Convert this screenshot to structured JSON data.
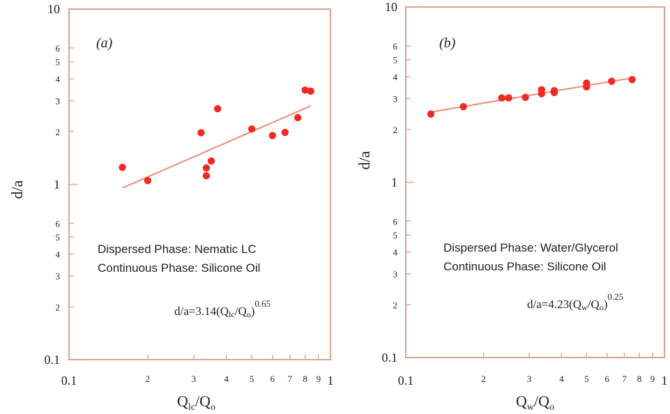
{
  "chart_data": [
    {
      "type": "scatter",
      "panel_label": "(a)",
      "xlabel": {
        "main": "Q",
        "sub1": "lc",
        "slash": "/Q",
        "sub2": "o"
      },
      "ylabel": "d/a",
      "x_scale": "log",
      "y_scale": "log",
      "xlim": [
        0.1,
        1
      ],
      "ylim": [
        0.1,
        10
      ],
      "x_major_ticks": [
        {
          "v": 0.1,
          "t": "0.1"
        },
        {
          "v": 1,
          "t": "1"
        }
      ],
      "x_minor_ticks": [
        {
          "v": 0.2,
          "t": "2"
        },
        {
          "v": 0.3,
          "t": "3"
        },
        {
          "v": 0.4,
          "t": "4"
        },
        {
          "v": 0.5,
          "t": "5"
        },
        {
          "v": 0.6,
          "t": "6"
        },
        {
          "v": 0.7,
          "t": "7"
        },
        {
          "v": 0.8,
          "t": "8"
        },
        {
          "v": 0.9,
          "t": "9"
        }
      ],
      "y_major_ticks": [
        {
          "v": 0.1,
          "t": "0.1"
        },
        {
          "v": 1,
          "t": "1"
        },
        {
          "v": 10,
          "t": "10"
        }
      ],
      "y_minor_ticks": [
        {
          "v": 0.2,
          "t": "2"
        },
        {
          "v": 0.3,
          "t": "3"
        },
        {
          "v": 0.4,
          "t": "4"
        },
        {
          "v": 0.5,
          "t": "5"
        },
        {
          "v": 0.6,
          "t": "6"
        },
        {
          "v": 2,
          "t": "2"
        },
        {
          "v": 3,
          "t": "3"
        },
        {
          "v": 4,
          "t": "4"
        },
        {
          "v": 5,
          "t": "5"
        },
        {
          "v": 6,
          "t": "6"
        }
      ],
      "points": [
        {
          "x": 0.16,
          "y": 1.25
        },
        {
          "x": 0.2,
          "y": 1.05
        },
        {
          "x": 0.32,
          "y": 1.97
        },
        {
          "x": 0.335,
          "y": 1.12
        },
        {
          "x": 0.335,
          "y": 1.24
        },
        {
          "x": 0.35,
          "y": 1.36
        },
        {
          "x": 0.37,
          "y": 2.7
        },
        {
          "x": 0.5,
          "y": 2.07
        },
        {
          "x": 0.6,
          "y": 1.9
        },
        {
          "x": 0.67,
          "y": 1.98
        },
        {
          "x": 0.75,
          "y": 2.4
        },
        {
          "x": 0.8,
          "y": 3.45
        },
        {
          "x": 0.84,
          "y": 3.4
        }
      ],
      "fit": {
        "coef": 3.14,
        "exp": 0.65,
        "x_range": [
          0.16,
          0.84
        ]
      },
      "notes": [
        "Dispersed Phase: Nematic LC",
        "Continuous Phase: Silicone Oil"
      ],
      "equation": {
        "pre": "d/a=3.14(Q",
        "sub1": "lc",
        "mid": "/Q",
        "sub2": "o",
        "post": ")",
        "sup": "0.65"
      }
    },
    {
      "type": "scatter",
      "panel_label": "(b)",
      "xlabel": {
        "main": "Q",
        "sub1": "w",
        "slash": "/Q",
        "sub2": "o"
      },
      "ylabel": "d/a",
      "x_scale": "log",
      "y_scale": "log",
      "xlim": [
        0.1,
        1
      ],
      "ylim": [
        0.1,
        10
      ],
      "x_major_ticks": [
        {
          "v": 0.1,
          "t": "0.1"
        },
        {
          "v": 1,
          "t": "1"
        }
      ],
      "x_minor_ticks": [
        {
          "v": 0.2,
          "t": "2"
        },
        {
          "v": 0.3,
          "t": "3"
        },
        {
          "v": 0.4,
          "t": "4"
        },
        {
          "v": 0.5,
          "t": "5"
        },
        {
          "v": 0.6,
          "t": "6"
        },
        {
          "v": 0.7,
          "t": "7"
        },
        {
          "v": 0.8,
          "t": "8"
        },
        {
          "v": 0.9,
          "t": "9"
        }
      ],
      "y_major_ticks": [
        {
          "v": 0.1,
          "t": "0.1"
        },
        {
          "v": 1,
          "t": "1"
        },
        {
          "v": 10,
          "t": "10"
        }
      ],
      "y_minor_ticks": [
        {
          "v": 0.2,
          "t": "2"
        },
        {
          "v": 0.3,
          "t": "3"
        },
        {
          "v": 0.4,
          "t": "4"
        },
        {
          "v": 0.5,
          "t": "5"
        },
        {
          "v": 0.6,
          "t": "6"
        },
        {
          "v": 2,
          "t": "2"
        },
        {
          "v": 3,
          "t": "3"
        },
        {
          "v": 4,
          "t": "4"
        },
        {
          "v": 5,
          "t": "5"
        },
        {
          "v": 6,
          "t": "6"
        }
      ],
      "points": [
        {
          "x": 0.125,
          "y": 2.45
        },
        {
          "x": 0.167,
          "y": 2.7
        },
        {
          "x": 0.235,
          "y": 3.03
        },
        {
          "x": 0.25,
          "y": 3.03
        },
        {
          "x": 0.29,
          "y": 3.05
        },
        {
          "x": 0.335,
          "y": 3.2
        },
        {
          "x": 0.335,
          "y": 3.37
        },
        {
          "x": 0.375,
          "y": 3.25
        },
        {
          "x": 0.375,
          "y": 3.33
        },
        {
          "x": 0.5,
          "y": 3.5
        },
        {
          "x": 0.5,
          "y": 3.68
        },
        {
          "x": 0.625,
          "y": 3.77
        },
        {
          "x": 0.75,
          "y": 3.85
        }
      ],
      "fit": {
        "coef": 4.23,
        "exp": 0.25,
        "x_range": [
          0.125,
          0.75
        ]
      },
      "notes": [
        "Dispersed Phase: Water/Glycerol",
        "Continuous Phase: Silicone Oil"
      ],
      "equation": {
        "pre": "d/a=4.23(Q",
        "sub1": "w",
        "mid": "/Q",
        "sub2": "o",
        "post": ")",
        "sup": "0.25"
      }
    }
  ],
  "colors": {
    "frame": "#d9a38f",
    "points": "#f02a22",
    "fit": "#f08a7a"
  }
}
